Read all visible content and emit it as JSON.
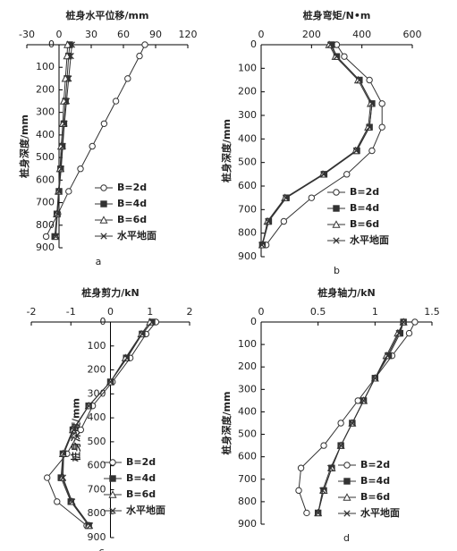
{
  "chart_data": [
    {
      "type": "line",
      "title": "桩身水平位移/mm",
      "y_label": "桩身深度/mm",
      "panel": "a",
      "y": [
        0,
        50,
        150,
        250,
        350,
        450,
        550,
        650,
        750,
        850
      ],
      "y_inverted": true,
      "xlim": [
        -30,
        120
      ],
      "xticks": [
        -30,
        0,
        30,
        60,
        90,
        120
      ],
      "ylim": [
        0,
        900
      ],
      "yticks": [
        0,
        100,
        200,
        300,
        400,
        500,
        600,
        700,
        800,
        900
      ],
      "series": [
        {
          "name": "B=2d",
          "color": "#333333",
          "marker": "circle",
          "values": [
            80,
            75,
            64,
            53,
            42,
            31,
            20,
            9,
            -1,
            -12
          ]
        },
        {
          "name": "B=4d",
          "color": "#333333",
          "marker": "square",
          "values": [
            10,
            9,
            7.5,
            6,
            4.5,
            3,
            1.5,
            0,
            -2,
            -4
          ]
        },
        {
          "name": "B=6d",
          "color": "#333333",
          "marker": "triangle",
          "values": [
            8,
            7.5,
            6,
            4.5,
            3.5,
            2,
            1,
            -0.5,
            -2,
            -3
          ]
        },
        {
          "name": "水平地面",
          "color": "#333333",
          "marker": "cross",
          "values": [
            12,
            11,
            9,
            7,
            5,
            3.5,
            2,
            0,
            -1.5,
            -3
          ]
        }
      ]
    },
    {
      "type": "line",
      "title": "桩身弯矩/N•m",
      "y_label": "桩身深度/mm",
      "panel": "b",
      "y": [
        0,
        50,
        150,
        250,
        350,
        450,
        550,
        650,
        750,
        850
      ],
      "y_inverted": true,
      "xlim": [
        0,
        600
      ],
      "xticks": [
        0,
        200,
        400,
        600
      ],
      "ylim": [
        0,
        900
      ],
      "yticks": [
        0,
        100,
        200,
        300,
        400,
        500,
        600,
        700,
        800,
        900
      ],
      "series": [
        {
          "name": "B=2d",
          "color": "#333333",
          "marker": "circle",
          "values": [
            300,
            330,
            430,
            480,
            480,
            440,
            340,
            200,
            90,
            20
          ]
        },
        {
          "name": "B=4d",
          "color": "#333333",
          "marker": "square",
          "values": [
            280,
            300,
            390,
            440,
            430,
            380,
            250,
            100,
            30,
            5
          ]
        },
        {
          "name": "B=6d",
          "color": "#333333",
          "marker": "triangle",
          "values": [
            270,
            295,
            385,
            435,
            425,
            375,
            245,
            95,
            25,
            5
          ]
        },
        {
          "name": "水平地面",
          "color": "#333333",
          "marker": "cross",
          "values": [
            275,
            300,
            390,
            440,
            430,
            378,
            248,
            98,
            28,
            3
          ]
        }
      ]
    },
    {
      "type": "line",
      "title": "桩身剪力/kN",
      "y_label": "桩身深度/mm",
      "panel": "c",
      "y": [
        0,
        50,
        150,
        250,
        350,
        450,
        550,
        650,
        750,
        850
      ],
      "y_inverted": true,
      "xlim": [
        -2,
        2
      ],
      "xticks": [
        -2,
        -1,
        0,
        1,
        2
      ],
      "ylim": [
        0,
        900
      ],
      "yticks": [
        0,
        100,
        200,
        300,
        400,
        500,
        600,
        700,
        800,
        900
      ],
      "series": [
        {
          "name": "B=2d",
          "color": "#333333",
          "marker": "circle",
          "values": [
            1.15,
            0.9,
            0.5,
            0.05,
            -0.45,
            -0.75,
            -1.1,
            -1.6,
            -1.35,
            -0.6
          ]
        },
        {
          "name": "B=4d",
          "color": "#333333",
          "marker": "square",
          "values": [
            1.05,
            0.8,
            0.4,
            0,
            -0.55,
            -0.95,
            -1.2,
            -1.25,
            -1.0,
            -0.55
          ]
        },
        {
          "name": "B=6d",
          "color": "#333333",
          "marker": "triangle",
          "values": [
            1.0,
            0.78,
            0.38,
            0,
            -0.55,
            -0.95,
            -1.2,
            -1.22,
            -0.98,
            -0.55
          ]
        },
        {
          "name": "水平地面",
          "color": "#333333",
          "marker": "cross",
          "values": [
            1.05,
            0.8,
            0.42,
            0,
            -0.55,
            -0.93,
            -1.18,
            -1.2,
            -0.97,
            -0.52
          ]
        }
      ]
    },
    {
      "type": "line",
      "title": "桩身轴力/kN",
      "y_label": "桩身深度/mm",
      "panel": "d",
      "y": [
        0,
        50,
        150,
        250,
        350,
        450,
        550,
        650,
        750,
        850
      ],
      "y_inverted": true,
      "xlim": [
        0,
        1.5
      ],
      "xticks": [
        0,
        0.5,
        1,
        1.5
      ],
      "ylim": [
        0,
        900
      ],
      "yticks": [
        0,
        100,
        200,
        300,
        400,
        500,
        600,
        700,
        800,
        900
      ],
      "series": [
        {
          "name": "B=2d",
          "color": "#333333",
          "marker": "circle",
          "values": [
            1.35,
            1.3,
            1.15,
            1.0,
            0.85,
            0.7,
            0.55,
            0.35,
            0.33,
            0.4
          ]
        },
        {
          "name": "B=4d",
          "color": "#333333",
          "marker": "square",
          "values": [
            1.25,
            1.22,
            1.12,
            1.0,
            0.9,
            0.8,
            0.7,
            0.62,
            0.55,
            0.5
          ]
        },
        {
          "name": "B=6d",
          "color": "#333333",
          "marker": "triangle",
          "values": [
            1.25,
            1.2,
            1.1,
            1.0,
            0.9,
            0.8,
            0.7,
            0.62,
            0.55,
            0.5
          ]
        },
        {
          "name": "水平地面",
          "color": "#333333",
          "marker": "cross",
          "values": [
            1.25,
            1.21,
            1.11,
            1.0,
            0.9,
            0.8,
            0.7,
            0.61,
            0.54,
            0.5
          ]
        }
      ]
    }
  ]
}
